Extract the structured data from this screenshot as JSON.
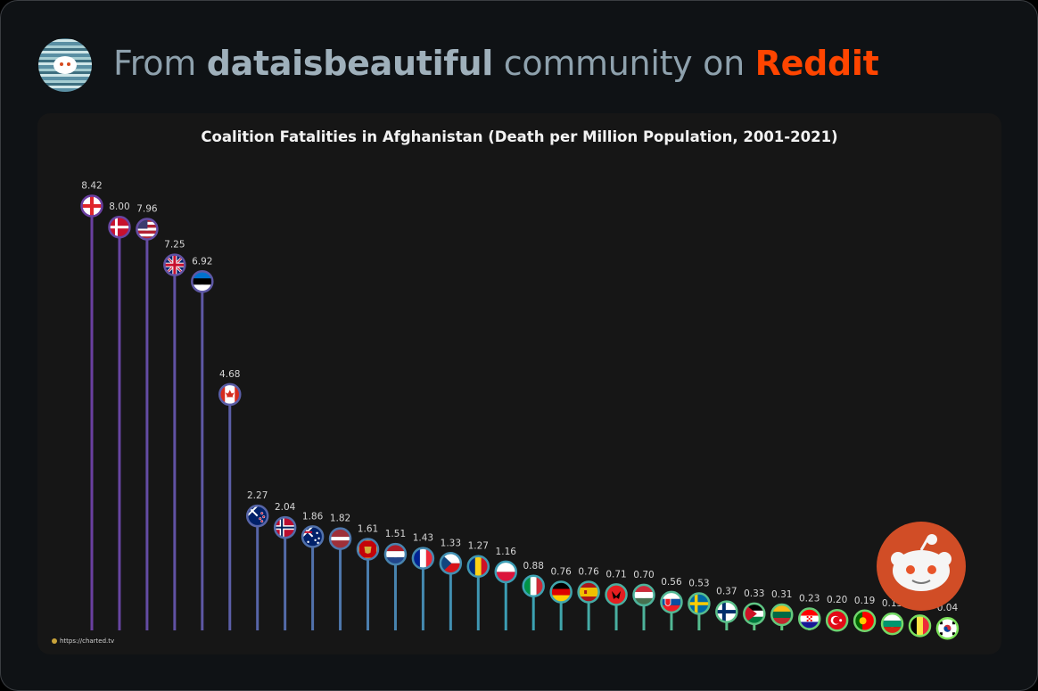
{
  "header": {
    "prefix": "From",
    "community": "dataisbeautiful",
    "middle": "community on",
    "platform": "Reddit"
  },
  "source_label": "https://charted.tv",
  "colors": {
    "platform": "#ff4500",
    "background": "#0f1215",
    "card": "#161616"
  },
  "chart_data": {
    "type": "bar",
    "title": "Coalition Fatalities in Afghanistan (Death per Million Population, 2001-2021)",
    "categories": [
      "Georgia",
      "Denmark",
      "United States",
      "United Kingdom",
      "Estonia",
      "Canada",
      "New Zealand",
      "Norway",
      "Australia",
      "Latvia",
      "Montenegro",
      "Netherlands",
      "France",
      "Czech Republic",
      "Romania",
      "Poland",
      "Italy",
      "Germany",
      "Spain",
      "Albania",
      "Hungary",
      "Slovakia",
      "Sweden",
      "Finland",
      "Jordan",
      "Lithuania",
      "Croatia",
      "Turkey",
      "Portugal",
      "Bulgaria",
      "Belgium",
      "South Korea"
    ],
    "values": [
      8.42,
      8.0,
      7.96,
      7.25,
      6.92,
      4.68,
      2.27,
      2.04,
      1.86,
      1.82,
      1.61,
      1.51,
      1.43,
      1.33,
      1.27,
      1.16,
      0.88,
      0.76,
      0.76,
      0.71,
      0.7,
      0.56,
      0.53,
      0.37,
      0.33,
      0.31,
      0.23,
      0.2,
      0.19,
      0.13,
      0.09,
      0.04
    ],
    "value_labels": [
      "8.42",
      "8.00",
      "7.96",
      "7.25",
      "6.92",
      "4.68",
      "2.27",
      "2.04",
      "1.86",
      "1.82",
      "1.61",
      "1.51",
      "1.43",
      "1.33",
      "1.27",
      "1.16",
      "0.88",
      "0.76",
      "0.76",
      "0.71",
      "0.70",
      "0.56",
      "0.53",
      "0.37",
      "0.33",
      "0.31",
      "0.23",
      "0.20",
      "0.19",
      "0.13",
      "0.09",
      "0.04"
    ],
    "ylim": [
      0,
      8.42
    ],
    "grid": false,
    "markers": "country-flags",
    "color_gradient": [
      "#6a3fa0",
      "#3aa0b5",
      "#7de35a"
    ]
  }
}
